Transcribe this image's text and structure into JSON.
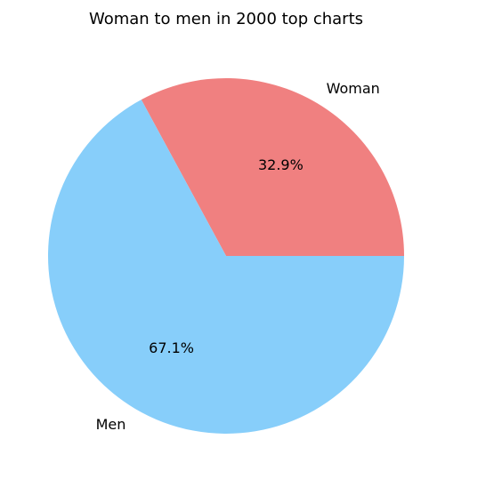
{
  "chart_data": {
    "type": "pie",
    "title": "Woman to men in 2000 top charts",
    "slices": [
      {
        "label": "Woman",
        "value": 32.9,
        "pct_label": "32.9%",
        "color": "#f08080"
      },
      {
        "label": "Men",
        "value": 67.1,
        "pct_label": "67.1%",
        "color": "#87cefa"
      }
    ],
    "start_angle_deg": 0,
    "direction": "counterclockwise"
  }
}
